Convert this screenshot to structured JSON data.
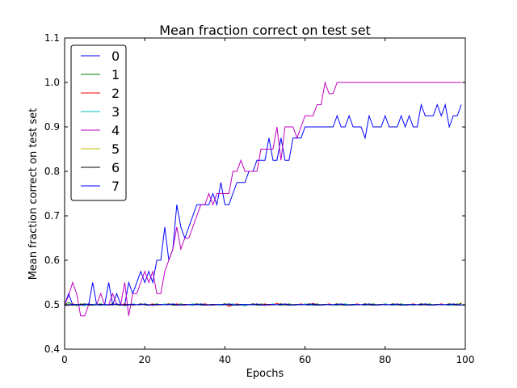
{
  "chart_data": {
    "type": "line",
    "title": "Mean fraction correct on test set",
    "xlabel": "Epochs",
    "ylabel": "Mean fraction correct on test set",
    "xlim": [
      0,
      100
    ],
    "ylim": [
      0.4,
      1.1
    ],
    "xticks": [
      "0",
      "20",
      "40",
      "60",
      "80",
      "100"
    ],
    "yticks": [
      "0.4",
      "0.5",
      "0.6",
      "0.7",
      "0.8",
      "0.9",
      "1.0",
      "1.1"
    ],
    "grid": false,
    "legend_position": "top-left",
    "series": [
      {
        "name": "0",
        "color": "#0000ff",
        "values": [
          0.5,
          0.525,
          0.5,
          0.5,
          0.5,
          0.5,
          0.5,
          0.55,
          0.5,
          0.5,
          0.5,
          0.55,
          0.5,
          0.525,
          0.5,
          0.5,
          0.55,
          0.525,
          0.55,
          0.575,
          0.55,
          0.575,
          0.55,
          0.6,
          0.6,
          0.675,
          0.6,
          0.625,
          0.725,
          0.675,
          0.65,
          0.675,
          0.7,
          0.725,
          0.725,
          0.725,
          0.725,
          0.75,
          0.725,
          0.775,
          0.725,
          0.725,
          0.75,
          0.775,
          0.775,
          0.775,
          0.8,
          0.8,
          0.825,
          0.825,
          0.825,
          0.875,
          0.825,
          0.825,
          0.875,
          0.825,
          0.825,
          0.875,
          0.875,
          0.875,
          0.9,
          0.9,
          0.9,
          0.9,
          0.9,
          0.9,
          0.9,
          0.9,
          0.925,
          0.9,
          0.9,
          0.925,
          0.9,
          0.9,
          0.9,
          0.875,
          0.925,
          0.9,
          0.9,
          0.9,
          0.925,
          0.9,
          0.9,
          0.9,
          0.925,
          0.9,
          0.925,
          0.9,
          0.9,
          0.95,
          0.925,
          0.925,
          0.925,
          0.95,
          0.925,
          0.95,
          0.9,
          0.925,
          0.925,
          0.95
        ]
      },
      {
        "name": "1",
        "color": "#008000",
        "values": [
          0.5,
          0.505,
          0.5,
          0.498,
          0.502,
          0.5,
          0.499,
          0.501,
          0.5,
          0.502,
          0.5,
          0.499,
          0.5,
          0.501,
          0.5,
          0.498,
          0.5,
          0.502,
          0.5,
          0.501,
          0.5,
          0.499,
          0.5,
          0.502,
          0.5,
          0.5,
          0.501,
          0.499,
          0.5,
          0.502,
          0.5,
          0.5,
          0.499,
          0.501,
          0.5,
          0.502,
          0.5,
          0.499,
          0.5,
          0.501,
          0.5,
          0.502,
          0.5,
          0.499,
          0.5,
          0.5,
          0.501,
          0.5,
          0.499,
          0.502,
          0.5,
          0.5,
          0.501,
          0.5,
          0.499,
          0.5,
          0.502,
          0.5,
          0.5,
          0.501,
          0.5,
          0.499,
          0.5,
          0.502,
          0.5,
          0.5,
          0.501,
          0.5,
          0.499,
          0.5,
          0.502,
          0.5,
          0.5,
          0.501,
          0.5,
          0.499,
          0.5,
          0.502,
          0.5,
          0.5,
          0.501,
          0.5,
          0.499,
          0.5,
          0.502,
          0.5,
          0.5,
          0.501,
          0.5,
          0.499,
          0.5,
          0.502,
          0.5,
          0.5,
          0.501,
          0.5,
          0.499,
          0.5,
          0.502,
          0.5
        ]
      },
      {
        "name": "2",
        "color": "#ff0000",
        "values": [
          0.5,
          0.498,
          0.502,
          0.5,
          0.5,
          0.501,
          0.499,
          0.5,
          0.502,
          0.5,
          0.5,
          0.499,
          0.501,
          0.5,
          0.5,
          0.502,
          0.5,
          0.499,
          0.5,
          0.501,
          0.5,
          0.5,
          0.502,
          0.499,
          0.5,
          0.5,
          0.501,
          0.5,
          0.502,
          0.5,
          0.499,
          0.5,
          0.5,
          0.501,
          0.5,
          0.502,
          0.5,
          0.499,
          0.5,
          0.5,
          0.501,
          0.496,
          0.5,
          0.502,
          0.5,
          0.499,
          0.5,
          0.501,
          0.5,
          0.5,
          0.502,
          0.499,
          0.5,
          0.503,
          0.5,
          0.501,
          0.5,
          0.499,
          0.5,
          0.502,
          0.5,
          0.5,
          0.503,
          0.5,
          0.499,
          0.5,
          0.502,
          0.5,
          0.5,
          0.501,
          0.5,
          0.499,
          0.5,
          0.502,
          0.5,
          0.5,
          0.501,
          0.5,
          0.499,
          0.5,
          0.502,
          0.5,
          0.5,
          0.501,
          0.5,
          0.499,
          0.5,
          0.502,
          0.5,
          0.5,
          0.501,
          0.5,
          0.499,
          0.5,
          0.502,
          0.5,
          0.5,
          0.501,
          0.5,
          0.499
        ]
      },
      {
        "name": "3",
        "color": "#00bfbf",
        "values": [
          0.5,
          0.499,
          0.5,
          0.501,
          0.5,
          0.498,
          0.5,
          0.5,
          0.502,
          0.5,
          0.499,
          0.5,
          0.501,
          0.5,
          0.5,
          0.499,
          0.5,
          0.502,
          0.5,
          0.5,
          0.501,
          0.5,
          0.499,
          0.5,
          0.5,
          0.502,
          0.5,
          0.5,
          0.499,
          0.501,
          0.5,
          0.5,
          0.502,
          0.5,
          0.499,
          0.5,
          0.5,
          0.501,
          0.5,
          0.499,
          0.5,
          0.5,
          0.502,
          0.5,
          0.499,
          0.498,
          0.5,
          0.501,
          0.5,
          0.5,
          0.499,
          0.5,
          0.502,
          0.5,
          0.5,
          0.501,
          0.5,
          0.499,
          0.5,
          0.5,
          0.502,
          0.5,
          0.499,
          0.5,
          0.5,
          0.501,
          0.5,
          0.499,
          0.5,
          0.5,
          0.502,
          0.5,
          0.499,
          0.5,
          0.5,
          0.501,
          0.5,
          0.499,
          0.5,
          0.5,
          0.502,
          0.5,
          0.499,
          0.5,
          0.5,
          0.501,
          0.5,
          0.499,
          0.5,
          0.5,
          0.502,
          0.5,
          0.499,
          0.5,
          0.5,
          0.501,
          0.5,
          0.499,
          0.5,
          0.5
        ]
      },
      {
        "name": "4",
        "color": "#bf00bf",
        "values": [
          0.5,
          0.52,
          0.55,
          0.525,
          0.475,
          0.475,
          0.5,
          0.5,
          0.5,
          0.525,
          0.5,
          0.5,
          0.525,
          0.5,
          0.5,
          0.55,
          0.475,
          0.525,
          0.525,
          0.55,
          0.575,
          0.55,
          0.575,
          0.525,
          0.525,
          0.575,
          0.6,
          0.625,
          0.675,
          0.625,
          0.65,
          0.65,
          0.675,
          0.7,
          0.725,
          0.725,
          0.75,
          0.725,
          0.75,
          0.75,
          0.75,
          0.75,
          0.8,
          0.8,
          0.825,
          0.8,
          0.8,
          0.8,
          0.8,
          0.85,
          0.85,
          0.85,
          0.85,
          0.9,
          0.825,
          0.9,
          0.9,
          0.9,
          0.875,
          0.9,
          0.925,
          0.925,
          0.925,
          0.95,
          0.95,
          1.0,
          0.975,
          0.975,
          1.0,
          1.0,
          1.0,
          1.0,
          1.0,
          1.0,
          1.0,
          1.0,
          1.0,
          1.0,
          1.0,
          1.0,
          1.0,
          1.0,
          1.0,
          1.0,
          1.0,
          1.0,
          1.0,
          1.0,
          1.0,
          1.0,
          1.0,
          1.0,
          1.0,
          1.0,
          1.0,
          1.0,
          1.0,
          1.0,
          1.0,
          1.0
        ]
      },
      {
        "name": "5",
        "color": "#bfbf00",
        "values": [
          0.5,
          0.501,
          0.5,
          0.499,
          0.5,
          0.502,
          0.5,
          0.5,
          0.499,
          0.501,
          0.5,
          0.5,
          0.502,
          0.5,
          0.499,
          0.5,
          0.501,
          0.5,
          0.5,
          0.502,
          0.5,
          0.499,
          0.5,
          0.501,
          0.5,
          0.5,
          0.502,
          0.5,
          0.499,
          0.5,
          0.501,
          0.5,
          0.5,
          0.502,
          0.5,
          0.499,
          0.5,
          0.501,
          0.5,
          0.5,
          0.502,
          0.5,
          0.499,
          0.5,
          0.501,
          0.5,
          0.5,
          0.502,
          0.5,
          0.499,
          0.5,
          0.501,
          0.5,
          0.5,
          0.502,
          0.5,
          0.499,
          0.5,
          0.501,
          0.5,
          0.5,
          0.502,
          0.5,
          0.499,
          0.5,
          0.501,
          0.5,
          0.5,
          0.502,
          0.5,
          0.499,
          0.5,
          0.501,
          0.5,
          0.5,
          0.502,
          0.5,
          0.499,
          0.5,
          0.501,
          0.5,
          0.5,
          0.502,
          0.5,
          0.499,
          0.5,
          0.501,
          0.5,
          0.5,
          0.502,
          0.5,
          0.499,
          0.5,
          0.501,
          0.5,
          0.5,
          0.502,
          0.5,
          0.499,
          0.505
        ]
      },
      {
        "name": "6",
        "color": "#000000",
        "values": [
          0.5,
          0.5,
          0.499,
          0.501,
          0.5,
          0.502,
          0.5,
          0.499,
          0.5,
          0.501,
          0.5,
          0.5,
          0.502,
          0.5,
          0.499,
          0.5,
          0.501,
          0.5,
          0.5,
          0.502,
          0.5,
          0.499,
          0.5,
          0.501,
          0.5,
          0.5,
          0.502,
          0.5,
          0.499,
          0.5,
          0.501,
          0.5,
          0.5,
          0.502,
          0.5,
          0.499,
          0.5,
          0.501,
          0.5,
          0.5,
          0.502,
          0.5,
          0.499,
          0.5,
          0.501,
          0.5,
          0.5,
          0.502,
          0.5,
          0.499,
          0.5,
          0.501,
          0.5,
          0.5,
          0.502,
          0.5,
          0.499,
          0.5,
          0.501,
          0.5,
          0.5,
          0.502,
          0.5,
          0.499,
          0.5,
          0.501,
          0.5,
          0.5,
          0.502,
          0.5,
          0.499,
          0.5,
          0.501,
          0.5,
          0.5,
          0.502,
          0.5,
          0.499,
          0.5,
          0.501,
          0.5,
          0.5,
          0.502,
          0.5,
          0.499,
          0.5,
          0.501,
          0.5,
          0.5,
          0.502,
          0.5,
          0.499,
          0.5,
          0.501,
          0.5,
          0.5,
          0.502,
          0.5,
          0.499,
          0.503
        ]
      },
      {
        "name": "7",
        "color": "#0000ff",
        "values": [
          0.498,
          0.5,
          0.501,
          0.5,
          0.499,
          0.5,
          0.502,
          0.5,
          0.5,
          0.499,
          0.501,
          0.5,
          0.5,
          0.502,
          0.5,
          0.499,
          0.5,
          0.501,
          0.5,
          0.5,
          0.502,
          0.5,
          0.499,
          0.5,
          0.501,
          0.5,
          0.5,
          0.502,
          0.5,
          0.499,
          0.5,
          0.501,
          0.5,
          0.5,
          0.502,
          0.5,
          0.499,
          0.5,
          0.501,
          0.5,
          0.5,
          0.502,
          0.5,
          0.499,
          0.5,
          0.501,
          0.5,
          0.5,
          0.502,
          0.5,
          0.499,
          0.5,
          0.501,
          0.5,
          0.5,
          0.502,
          0.5,
          0.499,
          0.5,
          0.501,
          0.5,
          0.5,
          0.502,
          0.5,
          0.499,
          0.5,
          0.501,
          0.5,
          0.5,
          0.502,
          0.5,
          0.499,
          0.5,
          0.501,
          0.5,
          0.5,
          0.502,
          0.5,
          0.499,
          0.5,
          0.501,
          0.5,
          0.5,
          0.502,
          0.5,
          0.499,
          0.5,
          0.501,
          0.5,
          0.5,
          0.502,
          0.5,
          0.499,
          0.5,
          0.501,
          0.5,
          0.5,
          0.502,
          0.5,
          0.499,
          0.499
        ]
      }
    ]
  }
}
